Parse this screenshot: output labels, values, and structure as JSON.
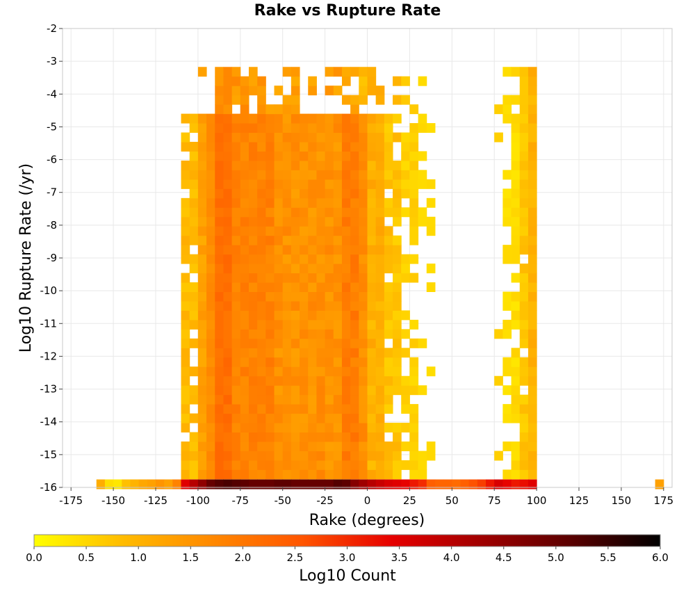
{
  "chart_data": {
    "type": "heatmap",
    "title": "Rake vs Rupture Rate",
    "xlabel": "Rake (degrees)",
    "ylabel": "Log10 Rupture Rate (/yr)",
    "colorbar_label": "Log10 Count",
    "xlim": [
      -180,
      180
    ],
    "ylim": [
      -16,
      -2
    ],
    "x_ticks": [
      -175,
      -150,
      -125,
      -100,
      -75,
      -50,
      -25,
      0,
      25,
      50,
      75,
      100,
      125,
      150,
      175
    ],
    "y_ticks": [
      -2,
      -3,
      -4,
      -5,
      -6,
      -7,
      -8,
      -9,
      -10,
      -11,
      -12,
      -13,
      -14,
      -15,
      -16
    ],
    "colorbar_ticks": [
      "0.0",
      "0.5",
      "1.0",
      "1.5",
      "2.0",
      "2.5",
      "3.0",
      "3.5",
      "4.0",
      "4.5",
      "5.0",
      "5.5",
      "6.0"
    ],
    "colorbar_range": [
      0,
      6
    ],
    "colorscale": [
      "#ffff00",
      "#ffbb00",
      "#ff8800",
      "#ff5500",
      "#e60000",
      "#a00000",
      "#5a0000",
      "#000000"
    ],
    "bin_width_x": 5,
    "bin_width_y": 0.2857,
    "grid": true,
    "cells_note": "x = rake bin center (deg), y = log10 rate bin center, z = log10 count",
    "cells": [
      [
        -157.5,
        -15.9,
        1.1
      ],
      [
        -152.5,
        -15.9,
        0.4
      ],
      [
        -147.5,
        -15.9,
        0.3
      ],
      [
        -142.5,
        -15.9,
        0.8
      ],
      [
        -137.5,
        -15.9,
        1.0
      ],
      [
        -132.5,
        -15.9,
        1.2
      ],
      [
        -127.5,
        -15.9,
        1.3
      ],
      [
        -122.5,
        -15.9,
        1.5
      ],
      [
        -117.5,
        -15.9,
        1.3
      ],
      [
        -112.5,
        -15.9,
        1.8
      ],
      [
        -107.5,
        -15.9,
        3.5
      ],
      [
        -102.5,
        -15.9,
        4.0
      ],
      [
        -97.5,
        -15.9,
        4.5
      ],
      [
        -92.5,
        -15.9,
        5.0
      ],
      [
        -87.5,
        -15.9,
        5.2
      ],
      [
        -82.5,
        -15.9,
        5.3
      ],
      [
        -77.5,
        -15.9,
        5.2
      ],
      [
        -72.5,
        -15.9,
        5.1
      ],
      [
        -67.5,
        -15.9,
        5.0
      ],
      [
        -62.5,
        -15.9,
        5.0
      ],
      [
        -57.5,
        -15.9,
        5.0
      ],
      [
        -52.5,
        -15.9,
        5.1
      ],
      [
        -47.5,
        -15.9,
        5.1
      ],
      [
        -42.5,
        -15.9,
        5.0
      ],
      [
        -37.5,
        -15.9,
        5.0
      ],
      [
        -32.5,
        -15.9,
        5.0
      ],
      [
        -27.5,
        -15.9,
        5.0
      ],
      [
        -22.5,
        -15.9,
        5.0
      ],
      [
        -17.5,
        -15.9,
        5.2
      ],
      [
        -12.5,
        -15.9,
        5.1
      ],
      [
        -7.5,
        -15.9,
        4.6
      ],
      [
        -2.5,
        -15.9,
        4.3
      ],
      [
        2.5,
        -15.9,
        4.0
      ],
      [
        7.5,
        -15.9,
        3.8
      ],
      [
        12.5,
        -15.9,
        3.6
      ],
      [
        17.5,
        -15.9,
        3.5
      ],
      [
        22.5,
        -15.9,
        3.4
      ],
      [
        27.5,
        -15.9,
        3.2
      ],
      [
        32.5,
        -15.9,
        3.0
      ],
      [
        37.5,
        -15.9,
        2.4
      ],
      [
        42.5,
        -15.9,
        2.3
      ],
      [
        47.5,
        -15.9,
        2.3
      ],
      [
        52.5,
        -15.9,
        2.2
      ],
      [
        57.5,
        -15.9,
        2.4
      ],
      [
        62.5,
        -15.9,
        2.6
      ],
      [
        67.5,
        -15.9,
        2.8
      ],
      [
        72.5,
        -15.9,
        3.2
      ],
      [
        77.5,
        -15.9,
        3.6
      ],
      [
        82.5,
        -15.9,
        3.4
      ],
      [
        87.5,
        -15.9,
        3.2
      ],
      [
        92.5,
        -15.9,
        3.3
      ],
      [
        97.5,
        -15.9,
        3.5
      ],
      [
        172.5,
        -15.9,
        1.3
      ]
    ]
  }
}
